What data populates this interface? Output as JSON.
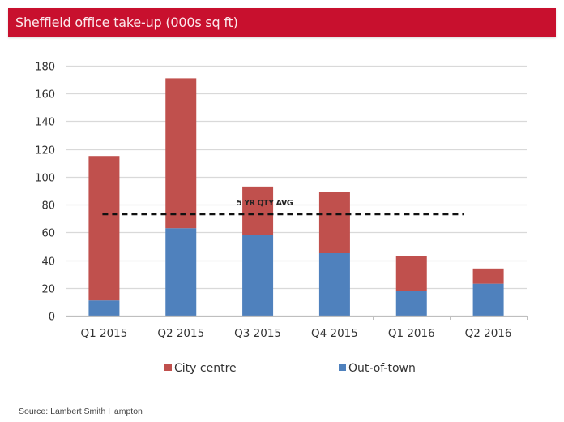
{
  "header": {
    "title": "Sheffield office take-up (000s sq ft)"
  },
  "source": "Source: Lambert Smith Hampton",
  "colors": {
    "title_bar": "#c8102e",
    "city_centre": "#c0504d",
    "out_of_town": "#4f81bd",
    "grid": "#d9d9d9",
    "avg_line": "#111111"
  },
  "chart_data": {
    "type": "bar",
    "stacked": true,
    "title": "Sheffield office take-up (000s sq ft)",
    "xlabel": "",
    "ylabel": "",
    "categories": [
      "Q1 2015",
      "Q2 2015",
      "Q3 2015",
      "Q4 2015",
      "Q1 2016",
      "Q2 2016"
    ],
    "series": [
      {
        "name": "Out-of-town",
        "color": "#4f81bd",
        "values": [
          11,
          63,
          58,
          45,
          18,
          23
        ]
      },
      {
        "name": "City centre",
        "color": "#c0504d",
        "values": [
          104,
          108,
          35,
          44,
          25,
          11
        ]
      }
    ],
    "totals": [
      115,
      171,
      93,
      89,
      43,
      34
    ],
    "ylim": [
      0,
      180
    ],
    "yticks": [
      0,
      20,
      40,
      60,
      80,
      100,
      120,
      140,
      160,
      180
    ],
    "grid": true,
    "legend": {
      "placement": "bottom",
      "entries": [
        "City centre",
        "Out-of-town"
      ]
    },
    "annotations": [
      {
        "type": "hline",
        "value": 73,
        "style": "dashed",
        "label": "5 YR QTY AVG",
        "from_category": 0,
        "to_category": 5
      }
    ]
  }
}
